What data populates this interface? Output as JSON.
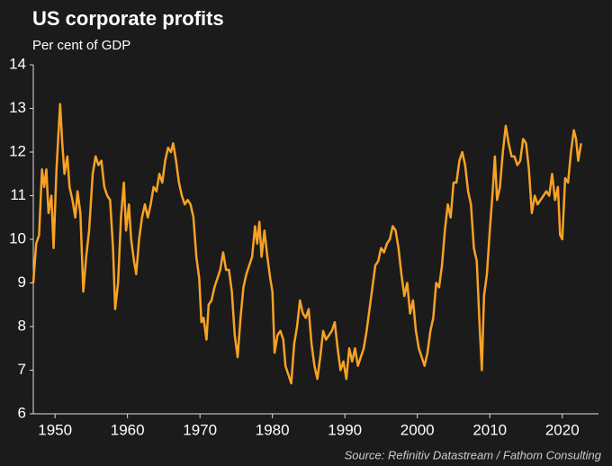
{
  "chart_data": {
    "type": "line",
    "title": "US corporate profits",
    "subtitle": "Per cent of GDP",
    "source": "Source: Refinitiv Datastream / Fathom Consulting",
    "x": [
      1947.0,
      1947.4,
      1947.8,
      1948.2,
      1948.5,
      1948.8,
      1949.1,
      1949.5,
      1949.8,
      1950.2,
      1950.7,
      1951.0,
      1951.3,
      1951.7,
      1952.0,
      1952.4,
      1952.8,
      1953.1,
      1953.5,
      1953.9,
      1954.3,
      1954.7,
      1955.2,
      1955.6,
      1956.0,
      1956.4,
      1956.8,
      1957.2,
      1957.6,
      1958.0,
      1958.3,
      1958.7,
      1959.1,
      1959.5,
      1959.8,
      1960.2,
      1960.5,
      1960.9,
      1961.2,
      1961.6,
      1962.0,
      1962.4,
      1962.8,
      1963.2,
      1963.6,
      1964.0,
      1964.4,
      1964.8,
      1965.2,
      1965.6,
      1966.0,
      1966.3,
      1966.7,
      1967.1,
      1967.5,
      1967.9,
      1968.3,
      1968.7,
      1969.1,
      1969.5,
      1969.9,
      1970.2,
      1970.5,
      1970.9,
      1971.2,
      1971.6,
      1972.0,
      1972.4,
      1972.8,
      1973.2,
      1973.6,
      1974.0,
      1974.4,
      1974.8,
      1975.2,
      1975.6,
      1976.0,
      1976.4,
      1976.8,
      1977.2,
      1977.6,
      1977.9,
      1978.2,
      1978.5,
      1978.9,
      1979.3,
      1979.7,
      1980.0,
      1980.3,
      1980.7,
      1981.1,
      1981.5,
      1981.8,
      1982.2,
      1982.6,
      1983.0,
      1983.4,
      1983.8,
      1984.2,
      1984.6,
      1985.0,
      1985.4,
      1985.8,
      1986.2,
      1986.6,
      1987.0,
      1987.4,
      1987.8,
      1988.2,
      1988.6,
      1989.0,
      1989.4,
      1989.8,
      1990.2,
      1990.6,
      1991.0,
      1991.4,
      1991.8,
      1992.2,
      1992.6,
      1993.0,
      1993.4,
      1993.8,
      1994.2,
      1994.6,
      1995.0,
      1995.4,
      1995.8,
      1996.2,
      1996.6,
      1997.0,
      1997.4,
      1997.8,
      1998.2,
      1998.6,
      1999.0,
      1999.4,
      1999.8,
      2000.2,
      2000.6,
      2001.0,
      2001.4,
      2001.8,
      2002.2,
      2002.6,
      2003.0,
      2003.4,
      2003.8,
      2004.2,
      2004.6,
      2005.0,
      2005.4,
      2005.8,
      2006.2,
      2006.6,
      2007.0,
      2007.4,
      2007.8,
      2008.2,
      2008.6,
      2008.9,
      2009.2,
      2009.6,
      2010.0,
      2010.4,
      2010.7,
      2011.0,
      2011.4,
      2011.8,
      2012.2,
      2012.6,
      2013.0,
      2013.4,
      2013.8,
      2014.2,
      2014.6,
      2015.0,
      2015.4,
      2015.8,
      2016.2,
      2016.6,
      2017.0,
      2017.4,
      2017.8,
      2018.2,
      2018.6,
      2019.0,
      2019.4,
      2019.7,
      2020.0,
      2020.4,
      2020.8,
      2021.2,
      2021.6,
      2021.9,
      2022.2,
      2022.6
    ],
    "series": [
      {
        "name": "Corporate profits",
        "color": "#f7a225",
        "values": [
          9.0,
          9.9,
          10.1,
          11.6,
          11.2,
          11.6,
          10.6,
          11.0,
          9.8,
          11.6,
          13.1,
          12.2,
          11.5,
          11.9,
          11.2,
          10.9,
          10.5,
          11.1,
          10.6,
          8.8,
          9.6,
          10.2,
          11.5,
          11.9,
          11.7,
          11.8,
          11.2,
          11.0,
          10.9,
          9.8,
          8.4,
          9.0,
          10.5,
          11.3,
          10.2,
          10.8,
          10.0,
          9.5,
          9.2,
          10.0,
          10.5,
          10.8,
          10.5,
          10.8,
          11.2,
          11.1,
          11.5,
          11.3,
          11.8,
          12.1,
          12.0,
          12.2,
          11.8,
          11.3,
          11.0,
          10.8,
          10.9,
          10.8,
          10.5,
          9.6,
          9.1,
          8.1,
          8.2,
          7.7,
          8.5,
          8.6,
          8.9,
          9.1,
          9.3,
          9.7,
          9.3,
          9.3,
          8.8,
          7.8,
          7.3,
          8.2,
          8.9,
          9.2,
          9.4,
          9.6,
          10.3,
          9.9,
          10.4,
          9.6,
          10.2,
          9.6,
          9.1,
          8.8,
          7.4,
          7.8,
          7.9,
          7.7,
          7.1,
          6.9,
          6.7,
          7.6,
          8.0,
          8.6,
          8.3,
          8.2,
          8.4,
          7.6,
          7.1,
          6.8,
          7.3,
          7.9,
          7.7,
          7.8,
          7.9,
          8.1,
          7.5,
          7.0,
          7.2,
          6.8,
          7.5,
          7.2,
          7.5,
          7.1,
          7.3,
          7.5,
          7.9,
          8.4,
          8.9,
          9.4,
          9.5,
          9.8,
          9.7,
          9.9,
          10.0,
          10.3,
          10.2,
          9.8,
          9.2,
          8.7,
          9.0,
          8.3,
          8.6,
          7.9,
          7.5,
          7.3,
          7.1,
          7.4,
          7.9,
          8.2,
          9.0,
          8.9,
          9.4,
          10.2,
          10.8,
          10.5,
          11.3,
          11.3,
          11.8,
          12.0,
          11.7,
          11.1,
          10.8,
          9.8,
          9.5,
          8.0,
          7.0,
          8.7,
          9.2,
          10.2,
          11.1,
          11.9,
          10.9,
          11.2,
          12.0,
          12.6,
          12.2,
          11.9,
          11.9,
          11.7,
          11.8,
          12.3,
          12.2,
          11.6,
          10.6,
          11.0,
          10.8,
          10.9,
          11.0,
          11.1,
          11.0,
          11.5,
          10.9,
          11.2,
          10.1,
          10.0,
          11.4,
          11.3,
          12.0,
          12.5,
          12.3,
          11.8,
          12.2
        ]
      }
    ],
    "xlim": [
      1947,
      2025
    ],
    "xticks": [
      1950,
      1960,
      1970,
      1980,
      1990,
      2000,
      2010,
      2020
    ],
    "ylim": [
      6,
      14
    ],
    "yticks": [
      6,
      7,
      8,
      9,
      10,
      11,
      12,
      13,
      14
    ],
    "grid": false
  }
}
